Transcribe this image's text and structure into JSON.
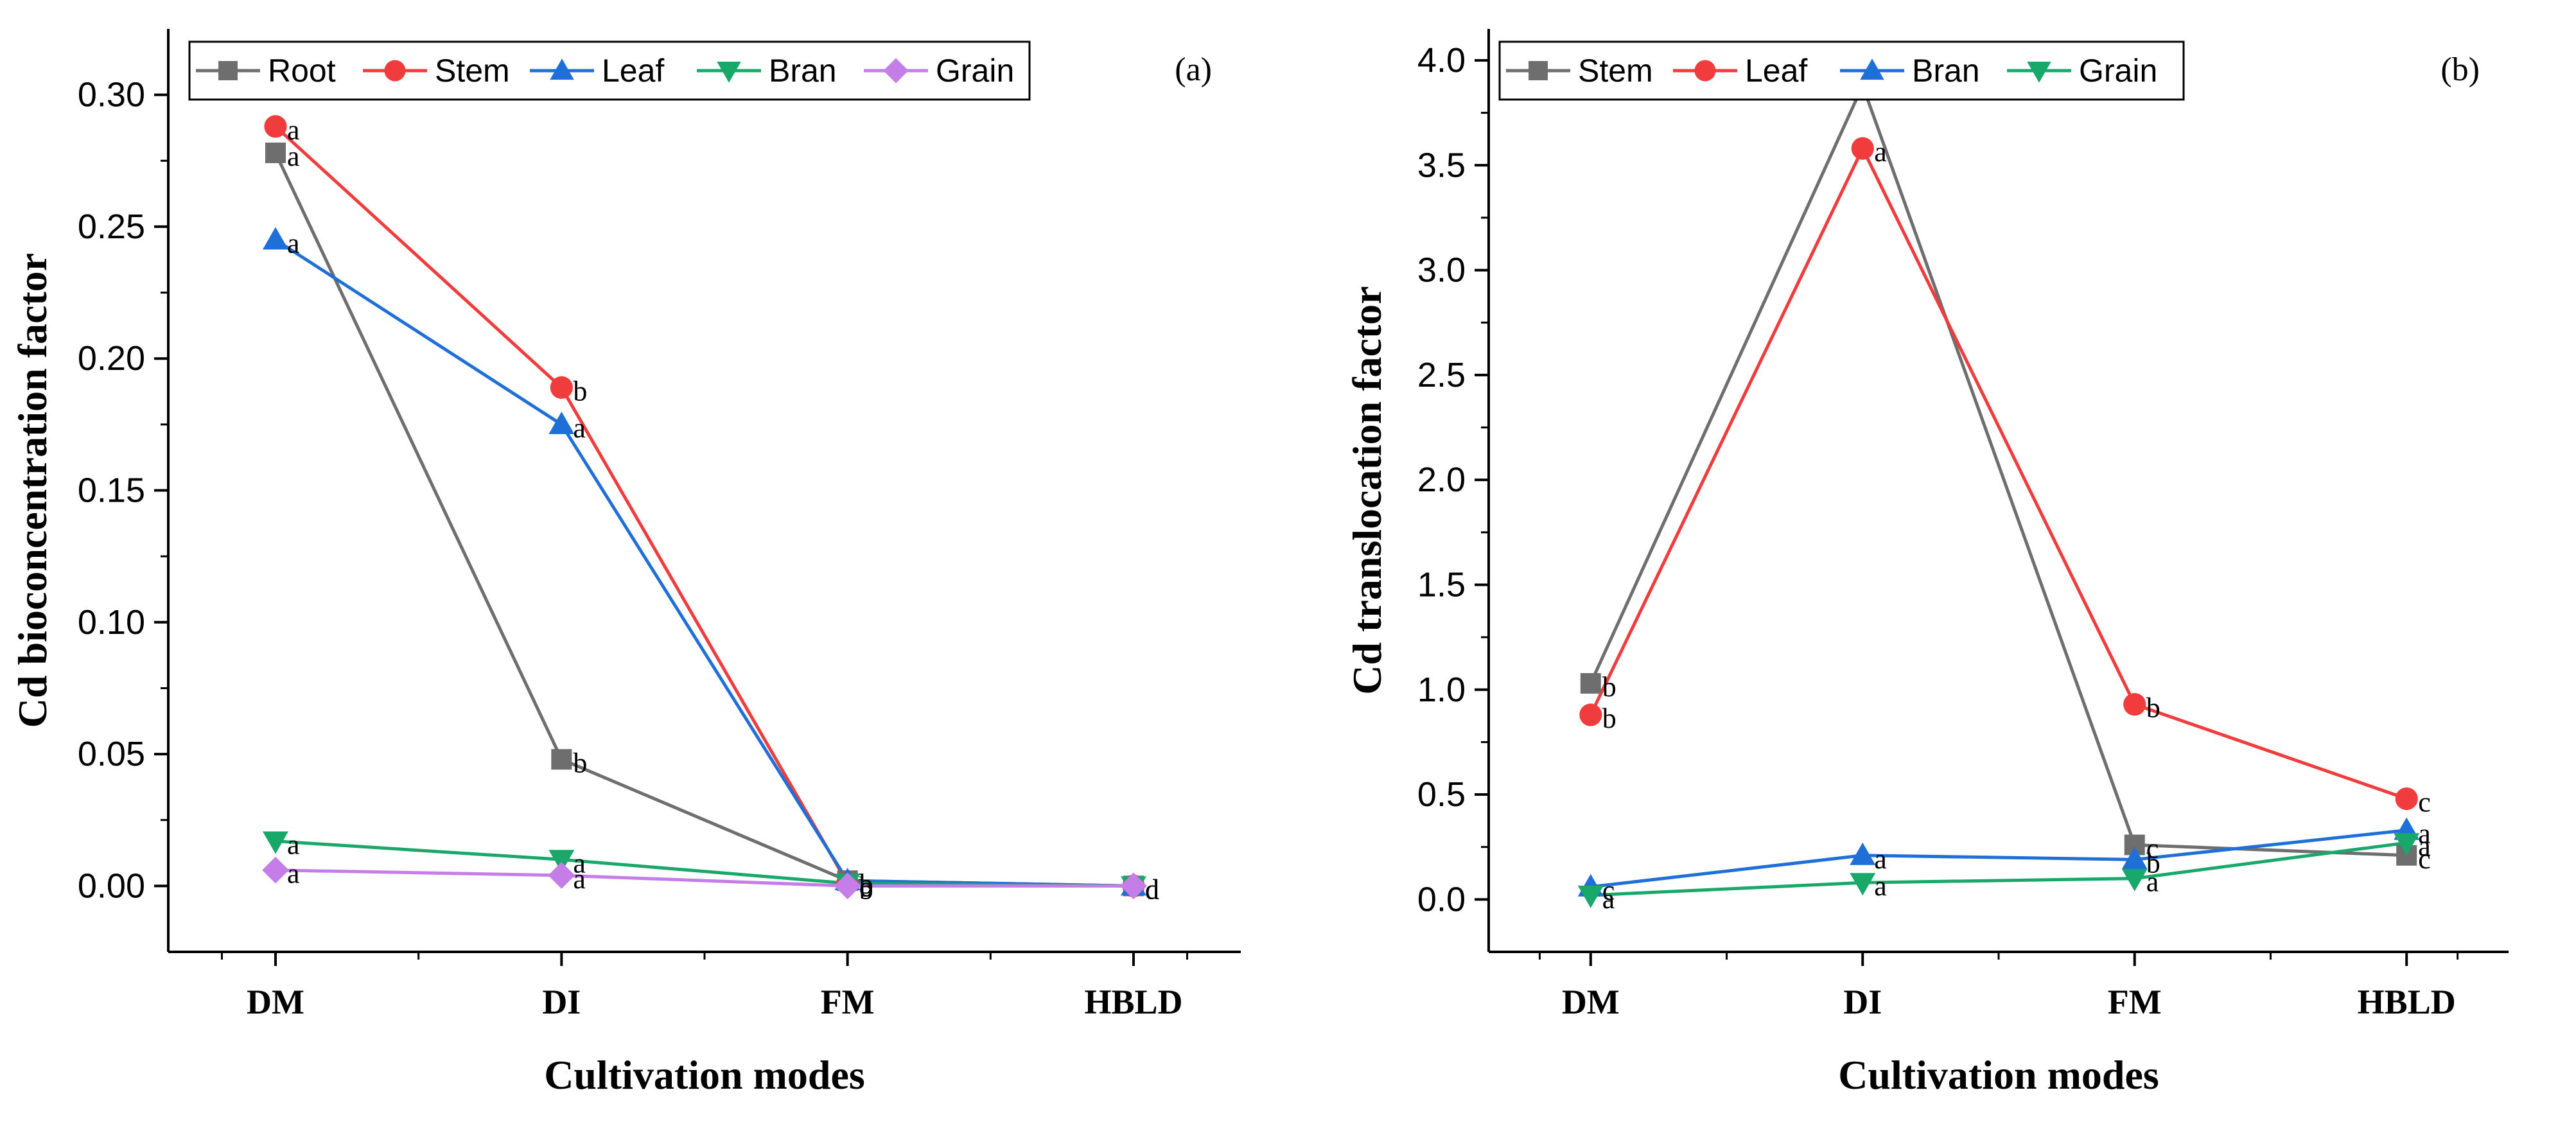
{
  "chart_data": [
    {
      "type": "line",
      "panel_label": "(a)",
      "xlabel": "Cultivation modes",
      "ylabel": "Cd bioconcentration factor",
      "categories": [
        "DM",
        "DI",
        "FM",
        "HBLD"
      ],
      "ylim": [
        -0.025,
        0.325
      ],
      "yticks": [
        0.0,
        0.05,
        0.1,
        0.15,
        0.2,
        0.25,
        0.3
      ],
      "yticklabels": [
        "0.00",
        "0.05",
        "0.10",
        "0.15",
        "0.20",
        "0.25",
        "0.30"
      ],
      "legend_position": "top-left",
      "series": [
        {
          "name": "Root",
          "marker": "square",
          "color": "#6e6e6e",
          "values": [
            0.278,
            0.048,
            0.002,
            0.0
          ],
          "letters": [
            "a",
            "b",
            "b",
            "d"
          ]
        },
        {
          "name": "Stem",
          "marker": "circle",
          "color": "#f03c3c",
          "values": [
            0.288,
            0.189,
            0.001,
            0.0
          ],
          "letters": [
            "a",
            "b",
            "c",
            "d"
          ]
        },
        {
          "name": "Leaf",
          "marker": "triangle-up",
          "color": "#1f6fd8",
          "values": [
            0.245,
            0.175,
            0.002,
            0.0
          ],
          "letters": [
            "a",
            "a",
            "b",
            "d"
          ]
        },
        {
          "name": "Bran",
          "marker": "triangle-down",
          "color": "#17a86a",
          "values": [
            0.017,
            0.01,
            0.001,
            0.0
          ],
          "letters": [
            "a",
            "a",
            "b",
            "d"
          ]
        },
        {
          "name": "Grain",
          "marker": "diamond",
          "color": "#c57de8",
          "values": [
            0.006,
            0.004,
            0.0,
            0.0
          ],
          "letters": [
            "a",
            "a",
            "b",
            "d"
          ]
        }
      ]
    },
    {
      "type": "line",
      "panel_label": "(b)",
      "xlabel": "Cultivation modes",
      "ylabel": "Cd translocation factor",
      "categories": [
        "DM",
        "DI",
        "FM",
        "HBLD"
      ],
      "ylim": [
        -0.25,
        4.15
      ],
      "yticks": [
        0.0,
        0.5,
        1.0,
        1.5,
        2.0,
        2.5,
        3.0,
        3.5,
        4.0
      ],
      "yticklabels": [
        "0.0",
        "0.5",
        "1.0",
        "1.5",
        "2.0",
        "2.5",
        "3.0",
        "3.5",
        "4.0"
      ],
      "legend_position": "top-left",
      "series": [
        {
          "name": "Stem",
          "marker": "square",
          "color": "#6e6e6e",
          "values": [
            1.03,
            3.88,
            0.26,
            0.21
          ],
          "letters": [
            "b",
            "a",
            "c",
            "c"
          ]
        },
        {
          "name": "Leaf",
          "marker": "circle",
          "color": "#f03c3c",
          "values": [
            0.88,
            3.58,
            0.93,
            0.48
          ],
          "letters": [
            "b",
            "a",
            "b",
            "c"
          ]
        },
        {
          "name": "Bran",
          "marker": "triangle-up",
          "color": "#1f6fd8",
          "values": [
            0.06,
            0.21,
            0.19,
            0.33
          ],
          "letters": [
            "c",
            "a",
            "b",
            "a"
          ]
        },
        {
          "name": "Grain",
          "marker": "triangle-down",
          "color": "#17a86a",
          "values": [
            0.02,
            0.08,
            0.1,
            0.27
          ],
          "letters": [
            "a",
            "a",
            "a",
            "a"
          ]
        }
      ]
    }
  ]
}
